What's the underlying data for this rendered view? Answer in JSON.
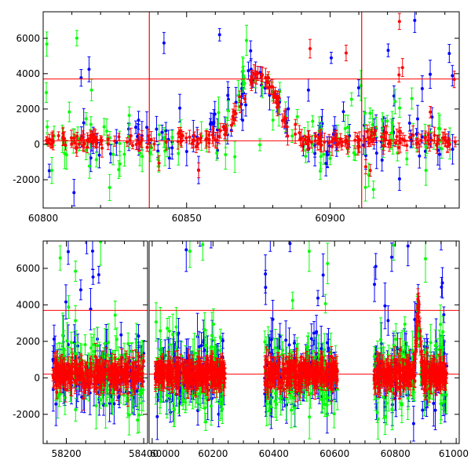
{
  "chart_data": [
    {
      "type": "scatter",
      "panel": "top",
      "title": "",
      "xlabel": "",
      "ylabel": "",
      "xlim": [
        60800,
        60945
      ],
      "ylim": [
        -3600,
        7500
      ],
      "x_ticks": [
        60800,
        60850,
        60900
      ],
      "y_ticks": [
        -2000,
        0,
        2000,
        4000,
        6000
      ],
      "hlines": [
        200,
        3700
      ],
      "vlines": [
        60837,
        60911
      ],
      "flare_center": 60875,
      "series": [
        {
          "name": "red",
          "color": "#ff0000",
          "scatter": 220,
          "outlier_rate": 0.04
        },
        {
          "name": "blue",
          "color": "#0000ff",
          "scatter": 700,
          "outlier_rate": 0.18
        },
        {
          "name": "green",
          "color": "#00ff00",
          "scatter": 800,
          "outlier_rate": 0.1
        }
      ]
    },
    {
      "type": "scatter",
      "panel": "bottom",
      "title": "",
      "xlabel": "",
      "ylabel": "",
      "ylim": [
        -3600,
        7500
      ],
      "y_ticks": [
        -2000,
        0,
        2000,
        4000,
        6000
      ],
      "hlines": [
        200,
        3700
      ],
      "segments": [
        {
          "xlim": [
            58140,
            58410
          ],
          "x_ticks": [
            58200,
            58400
          ],
          "data_range": [
            58165,
            58400
          ]
        },
        {
          "xlim": [
            59990,
            61010
          ],
          "x_ticks": [
            60000,
            60200,
            60400,
            60600,
            60800,
            61000
          ],
          "data_range": [
            60010,
            60970
          ]
        }
      ],
      "gaps": [
        [
          60240,
          60370
        ],
        [
          60610,
          60730
        ]
      ],
      "flare_center": 60875,
      "series": [
        {
          "name": "red",
          "color": "#ff0000",
          "scatter": 350
        },
        {
          "name": "blue",
          "color": "#0000ff",
          "scatter": 900
        },
        {
          "name": "green",
          "color": "#00ff00",
          "scatter": 1000
        }
      ]
    }
  ]
}
